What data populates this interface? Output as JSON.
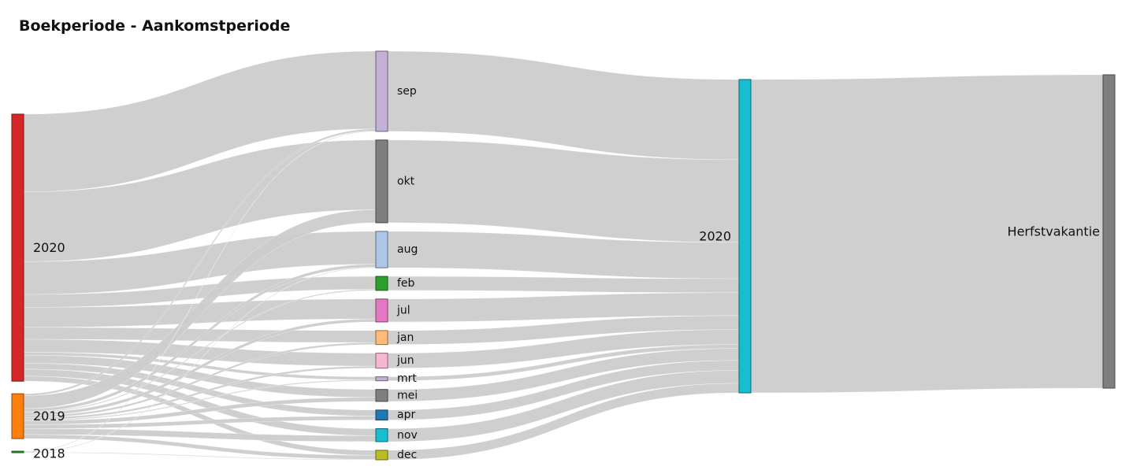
{
  "chart_data": {
    "type": "sankey",
    "title": "Boekperiode - Aankomstperiode",
    "link_color": "#cccccc",
    "columns": [
      [
        "2020",
        "2019",
        "2018"
      ],
      [
        "sep",
        "okt",
        "aug",
        "feb",
        "jul",
        "jan",
        "jun",
        "mrt",
        "mei",
        "apr",
        "nov",
        "dec"
      ],
      [
        "2020 "
      ],
      [
        "Herfstvakantie"
      ]
    ],
    "nodes": [
      {
        "id": "2020",
        "label": "2020",
        "color": "#d62728"
      },
      {
        "id": "2019",
        "label": "2019",
        "color": "#ff7f0e"
      },
      {
        "id": "2018",
        "label": "2018",
        "color": "#2ca02c"
      },
      {
        "id": "sep",
        "label": "sep",
        "color": "#c5b0d5"
      },
      {
        "id": "okt",
        "label": "okt",
        "color": "#7f7f7f"
      },
      {
        "id": "aug",
        "label": "aug",
        "color": "#aec7e8"
      },
      {
        "id": "feb",
        "label": "feb",
        "color": "#2ca02c"
      },
      {
        "id": "jul",
        "label": "jul",
        "color": "#e377c2"
      },
      {
        "id": "jan",
        "label": "jan",
        "color": "#ffbb78"
      },
      {
        "id": "jun",
        "label": "jun",
        "color": "#f7b6d2"
      },
      {
        "id": "mrt",
        "label": "mrt",
        "color": "#c5b0d5"
      },
      {
        "id": "mei",
        "label": "mei",
        "color": "#7f7f7f"
      },
      {
        "id": "apr",
        "label": "apr",
        "color": "#1f77b4"
      },
      {
        "id": "nov",
        "label": "nov",
        "color": "#17becf"
      },
      {
        "id": "dec",
        "label": "dec",
        "color": "#bcbd22"
      },
      {
        "id": "2020 ",
        "label": "2020",
        "color": "#17becf"
      },
      {
        "id": "Herfstvakantie",
        "label": "Herfstvakantie",
        "color": "#7f7f7f"
      }
    ],
    "links": [
      {
        "source": "2020",
        "target": "sep",
        "value": 78
      },
      {
        "source": "2020",
        "target": "okt",
        "value": 70
      },
      {
        "source": "2020",
        "target": "aug",
        "value": 33
      },
      {
        "source": "2020",
        "target": "feb",
        "value": 13
      },
      {
        "source": "2020",
        "target": "jul",
        "value": 20
      },
      {
        "source": "2020",
        "target": "jan",
        "value": 12
      },
      {
        "source": "2020",
        "target": "jun",
        "value": 13
      },
      {
        "source": "2020",
        "target": "mrt",
        "value": 3
      },
      {
        "source": "2020",
        "target": "mei",
        "value": 8
      },
      {
        "source": "2020",
        "target": "apr",
        "value": 6
      },
      {
        "source": "2020",
        "target": "nov",
        "value": 7
      },
      {
        "source": "2020",
        "target": "dec",
        "value": 5
      },
      {
        "source": "2019",
        "target": "sep",
        "value": 2
      },
      {
        "source": "2019",
        "target": "okt",
        "value": 13
      },
      {
        "source": "2019",
        "target": "aug",
        "value": 3
      },
      {
        "source": "2019",
        "target": "feb",
        "value": 1
      },
      {
        "source": "2019",
        "target": "jul",
        "value": 3
      },
      {
        "source": "2019",
        "target": "jan",
        "value": 2
      },
      {
        "source": "2019",
        "target": "jun",
        "value": 2
      },
      {
        "source": "2019",
        "target": "mrt",
        "value": 1
      },
      {
        "source": "2019",
        "target": "mei",
        "value": 4
      },
      {
        "source": "2019",
        "target": "apr",
        "value": 4
      },
      {
        "source": "2019",
        "target": "nov",
        "value": 6
      },
      {
        "source": "2019",
        "target": "dec",
        "value": 4
      },
      {
        "source": "2018",
        "target": "sep",
        "value": 0.5
      },
      {
        "source": "2018",
        "target": "aug",
        "value": 0.5
      },
      {
        "source": "2018",
        "target": "dec",
        "value": 0.5
      },
      {
        "source": "sep",
        "target": "2020 ",
        "value": 80.5
      },
      {
        "source": "okt",
        "target": "2020 ",
        "value": 83
      },
      {
        "source": "aug",
        "target": "2020 ",
        "value": 36.5
      },
      {
        "source": "feb",
        "target": "2020 ",
        "value": 14
      },
      {
        "source": "jul",
        "target": "2020 ",
        "value": 23
      },
      {
        "source": "jan",
        "target": "2020 ",
        "value": 14
      },
      {
        "source": "jun",
        "target": "2020 ",
        "value": 15
      },
      {
        "source": "mrt",
        "target": "2020 ",
        "value": 4
      },
      {
        "source": "mei",
        "target": "2020 ",
        "value": 12
      },
      {
        "source": "apr",
        "target": "2020 ",
        "value": 10
      },
      {
        "source": "nov",
        "target": "2020 ",
        "value": 13
      },
      {
        "source": "dec",
        "target": "2020 ",
        "value": 9.5
      },
      {
        "source": "2020 ",
        "target": "Herfstvakantie",
        "value": 314.5
      }
    ]
  }
}
